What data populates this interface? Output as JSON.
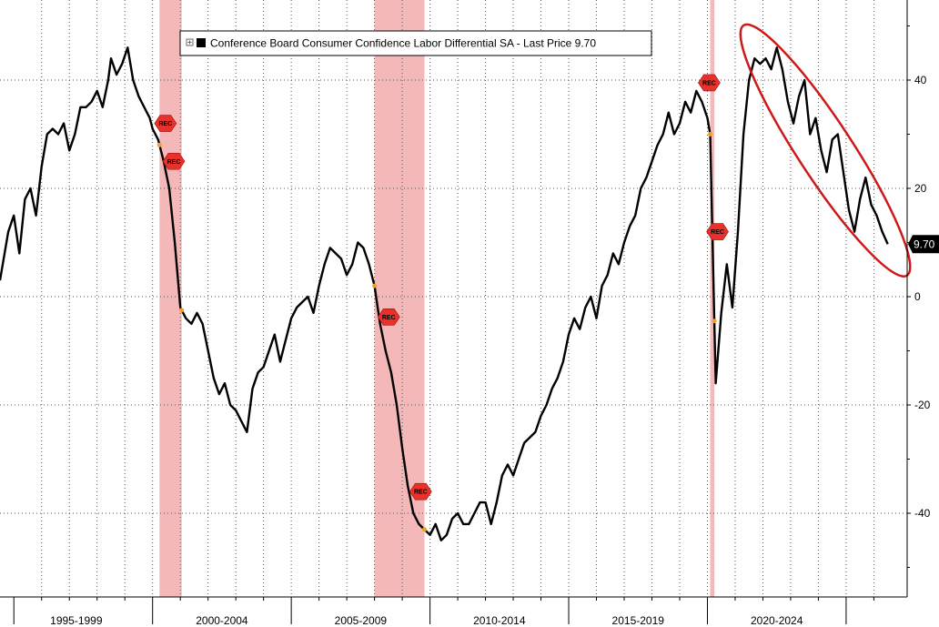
{
  "chart_data": {
    "type": "line",
    "legend": {
      "label": "Conference Board Consumer Confidence Labor Differential SA - Last Price 9.70",
      "placement": "top-left"
    },
    "series": [
      {
        "name": "Conference Board Consumer Confidence Labor Differential SA",
        "color": "#000000",
        "points": [
          [
            1994.5,
            3
          ],
          [
            1994.8,
            12
          ],
          [
            1995.0,
            15
          ],
          [
            1995.2,
            8
          ],
          [
            1995.4,
            18
          ],
          [
            1995.6,
            20
          ],
          [
            1995.8,
            15
          ],
          [
            1996.0,
            24
          ],
          [
            1996.2,
            30
          ],
          [
            1996.4,
            31
          ],
          [
            1996.6,
            30
          ],
          [
            1996.8,
            32
          ],
          [
            1997.0,
            27
          ],
          [
            1997.2,
            30
          ],
          [
            1997.4,
            35
          ],
          [
            1997.6,
            35
          ],
          [
            1997.8,
            36
          ],
          [
            1998.0,
            38
          ],
          [
            1998.2,
            35
          ],
          [
            1998.4,
            40
          ],
          [
            1998.5,
            44
          ],
          [
            1998.7,
            41
          ],
          [
            1998.9,
            43
          ],
          [
            1999.1,
            46
          ],
          [
            1999.3,
            40
          ],
          [
            1999.5,
            37
          ],
          [
            1999.7,
            35
          ],
          [
            1999.9,
            33
          ],
          [
            2000.0,
            31
          ],
          [
            2000.2,
            29
          ],
          [
            2000.4,
            25
          ],
          [
            2000.6,
            20
          ],
          [
            2000.8,
            10
          ],
          [
            2001.0,
            -2
          ],
          [
            2001.2,
            -4
          ],
          [
            2001.4,
            -5
          ],
          [
            2001.6,
            -3
          ],
          [
            2001.8,
            -5
          ],
          [
            2002.0,
            -10
          ],
          [
            2002.2,
            -15
          ],
          [
            2002.4,
            -18
          ],
          [
            2002.6,
            -16
          ],
          [
            2002.8,
            -20
          ],
          [
            2003.0,
            -21
          ],
          [
            2003.2,
            -23
          ],
          [
            2003.4,
            -25
          ],
          [
            2003.6,
            -17
          ],
          [
            2003.8,
            -14
          ],
          [
            2004.0,
            -13
          ],
          [
            2004.2,
            -10
          ],
          [
            2004.4,
            -7
          ],
          [
            2004.6,
            -12
          ],
          [
            2004.8,
            -8
          ],
          [
            2005.0,
            -4
          ],
          [
            2005.2,
            -2
          ],
          [
            2005.4,
            -1
          ],
          [
            2005.6,
            0
          ],
          [
            2005.8,
            -3
          ],
          [
            2006.0,
            2
          ],
          [
            2006.2,
            6
          ],
          [
            2006.4,
            9
          ],
          [
            2006.6,
            8
          ],
          [
            2006.8,
            7
          ],
          [
            2007.0,
            4
          ],
          [
            2007.2,
            6
          ],
          [
            2007.4,
            10
          ],
          [
            2007.6,
            9
          ],
          [
            2007.8,
            6
          ],
          [
            2008.0,
            2
          ],
          [
            2008.2,
            -5
          ],
          [
            2008.4,
            -10
          ],
          [
            2008.6,
            -14
          ],
          [
            2008.8,
            -20
          ],
          [
            2009.0,
            -28
          ],
          [
            2009.2,
            -35
          ],
          [
            2009.4,
            -40
          ],
          [
            2009.6,
            -42
          ],
          [
            2009.8,
            -43
          ],
          [
            2010.0,
            -44
          ],
          [
            2010.2,
            -42
          ],
          [
            2010.4,
            -45
          ],
          [
            2010.6,
            -44
          ],
          [
            2010.8,
            -41
          ],
          [
            2011.0,
            -40
          ],
          [
            2011.2,
            -42
          ],
          [
            2011.4,
            -42
          ],
          [
            2011.6,
            -40
          ],
          [
            2011.8,
            -38
          ],
          [
            2012.0,
            -38
          ],
          [
            2012.2,
            -42
          ],
          [
            2012.4,
            -38
          ],
          [
            2012.6,
            -33
          ],
          [
            2012.8,
            -31
          ],
          [
            2013.0,
            -33
          ],
          [
            2013.2,
            -30
          ],
          [
            2013.4,
            -27
          ],
          [
            2013.6,
            -26
          ],
          [
            2013.8,
            -25
          ],
          [
            2014.0,
            -22
          ],
          [
            2014.2,
            -20
          ],
          [
            2014.4,
            -17
          ],
          [
            2014.6,
            -15
          ],
          [
            2014.8,
            -12
          ],
          [
            2015.0,
            -7
          ],
          [
            2015.2,
            -4
          ],
          [
            2015.4,
            -6
          ],
          [
            2015.6,
            -2
          ],
          [
            2015.8,
            0
          ],
          [
            2016.0,
            -4
          ],
          [
            2016.2,
            2
          ],
          [
            2016.4,
            4
          ],
          [
            2016.6,
            8
          ],
          [
            2016.8,
            6
          ],
          [
            2017.0,
            10
          ],
          [
            2017.2,
            13
          ],
          [
            2017.4,
            15
          ],
          [
            2017.6,
            20
          ],
          [
            2017.8,
            22
          ],
          [
            2018.0,
            25
          ],
          [
            2018.2,
            28
          ],
          [
            2018.4,
            30
          ],
          [
            2018.6,
            34
          ],
          [
            2018.8,
            30
          ],
          [
            2019.0,
            32
          ],
          [
            2019.2,
            36
          ],
          [
            2019.4,
            34
          ],
          [
            2019.6,
            38
          ],
          [
            2019.8,
            36
          ],
          [
            2020.0,
            33
          ],
          [
            2020.1,
            30
          ],
          [
            2020.3,
            -16
          ],
          [
            2020.5,
            -3
          ],
          [
            2020.7,
            6
          ],
          [
            2020.9,
            -2
          ],
          [
            2021.1,
            12
          ],
          [
            2021.3,
            30
          ],
          [
            2021.5,
            40
          ],
          [
            2021.7,
            44
          ],
          [
            2021.9,
            43
          ],
          [
            2022.1,
            44
          ],
          [
            2022.3,
            42
          ],
          [
            2022.5,
            46
          ],
          [
            2022.7,
            42
          ],
          [
            2022.9,
            36
          ],
          [
            2023.1,
            32
          ],
          [
            2023.3,
            37
          ],
          [
            2023.5,
            40
          ],
          [
            2023.7,
            30
          ],
          [
            2023.9,
            33
          ],
          [
            2024.1,
            27
          ],
          [
            2024.3,
            23
          ],
          [
            2024.5,
            29
          ],
          [
            2024.7,
            30
          ],
          [
            2024.9,
            23
          ],
          [
            2025.1,
            16
          ],
          [
            2025.3,
            12
          ],
          [
            2025.5,
            18
          ],
          [
            2025.7,
            22
          ],
          [
            2025.9,
            17
          ],
          [
            2026.1,
            15
          ],
          [
            2026.3,
            12
          ],
          [
            2026.5,
            9.7
          ]
        ]
      }
    ],
    "last_price": {
      "value": 9.7,
      "label": "9.70",
      "marker_color": "#000000"
    },
    "recessions": [
      {
        "start": 2000.25,
        "end": 2001.05,
        "label_years": [
          2000.3,
          2000.6
        ]
      },
      {
        "start": 2008.0,
        "end": 2009.8,
        "label_years": [
          2008.35,
          2009.5
        ]
      },
      {
        "start": 2020.1,
        "end": 2020.25,
        "label_years": [
          2019.9,
          2020.2
        ]
      }
    ],
    "recession_marker_label": "REC",
    "recession_shade_color": "#f5b8b8",
    "recession_marker_color": "#e8312a",
    "highlight_color": "#cc1a1a",
    "x_categories": [
      {
        "label": "1995-1999",
        "start": 1994.5,
        "end": 2000.0
      },
      {
        "label": "2000-2004",
        "start": 2000.0,
        "end": 2005.0
      },
      {
        "label": "2005-2009",
        "start": 2005.0,
        "end": 2010.0
      },
      {
        "label": "2010-2014",
        "start": 2010.0,
        "end": 2015.0
      },
      {
        "label": "2015-2019",
        "start": 2015.0,
        "end": 2020.0
      },
      {
        "label": "2020-2024",
        "start": 2020.0,
        "end": 2025.0
      }
    ],
    "xlim": [
      1994.5,
      2027.2
    ],
    "y_ticks": [
      40,
      20,
      0,
      -20,
      -40
    ],
    "y_tick_labels": [
      "40",
      "20",
      "0",
      "-20",
      "-40"
    ],
    "ylim": [
      -50,
      50
    ],
    "ylabel_side": "right",
    "grid": true
  }
}
